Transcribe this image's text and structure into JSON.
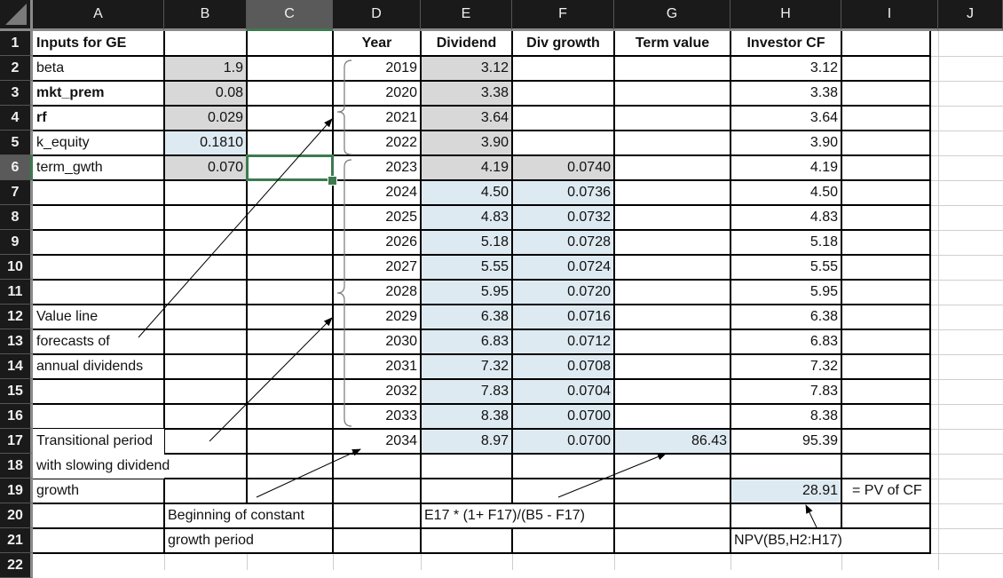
{
  "columns": [
    "A",
    "B",
    "C",
    "D",
    "E",
    "F",
    "G",
    "H",
    "I",
    "J"
  ],
  "selected_column": "C",
  "selected_row": "6",
  "selected_cell": "C6",
  "row_numbers": [
    "1",
    "2",
    "3",
    "4",
    "5",
    "6",
    "7",
    "8",
    "9",
    "10",
    "11",
    "12",
    "13",
    "14",
    "15",
    "16",
    "17",
    "18",
    "19",
    "20",
    "21",
    "22"
  ],
  "inputs": {
    "title": "Inputs for GE",
    "rows": [
      {
        "label": "beta",
        "value": "1.9"
      },
      {
        "label": "mkt_prem",
        "value": "0.08"
      },
      {
        "label": "rf",
        "value": "0.029"
      },
      {
        "label": "k_equity",
        "value": "0.1810"
      },
      {
        "label": "term_gwth",
        "value": "0.070"
      }
    ]
  },
  "table": {
    "headers": {
      "year": "Year",
      "dividend": "Dividend",
      "div_growth": "Div growth",
      "term_value": "Term value",
      "investor_cf": "Investor CF"
    },
    "rows": [
      {
        "year": "2019",
        "dividend": "3.12",
        "div_growth": "",
        "term_value": "",
        "investor_cf": "3.12"
      },
      {
        "year": "2020",
        "dividend": "3.38",
        "div_growth": "",
        "term_value": "",
        "investor_cf": "3.38"
      },
      {
        "year": "2021",
        "dividend": "3.64",
        "div_growth": "",
        "term_value": "",
        "investor_cf": "3.64"
      },
      {
        "year": "2022",
        "dividend": "3.90",
        "div_growth": "",
        "term_value": "",
        "investor_cf": "3.90"
      },
      {
        "year": "2023",
        "dividend": "4.19",
        "div_growth": "0.0740",
        "term_value": "",
        "investor_cf": "4.19"
      },
      {
        "year": "2024",
        "dividend": "4.50",
        "div_growth": "0.0736",
        "term_value": "",
        "investor_cf": "4.50"
      },
      {
        "year": "2025",
        "dividend": "4.83",
        "div_growth": "0.0732",
        "term_value": "",
        "investor_cf": "4.83"
      },
      {
        "year": "2026",
        "dividend": "5.18",
        "div_growth": "0.0728",
        "term_value": "",
        "investor_cf": "5.18"
      },
      {
        "year": "2027",
        "dividend": "5.55",
        "div_growth": "0.0724",
        "term_value": "",
        "investor_cf": "5.55"
      },
      {
        "year": "2028",
        "dividend": "5.95",
        "div_growth": "0.0720",
        "term_value": "",
        "investor_cf": "5.95"
      },
      {
        "year": "2029",
        "dividend": "6.38",
        "div_growth": "0.0716",
        "term_value": "",
        "investor_cf": "6.38"
      },
      {
        "year": "2030",
        "dividend": "6.83",
        "div_growth": "0.0712",
        "term_value": "",
        "investor_cf": "6.83"
      },
      {
        "year": "2031",
        "dividend": "7.32",
        "div_growth": "0.0708",
        "term_value": "",
        "investor_cf": "7.32"
      },
      {
        "year": "2032",
        "dividend": "7.83",
        "div_growth": "0.0704",
        "term_value": "",
        "investor_cf": "7.83"
      },
      {
        "year": "2033",
        "dividend": "8.38",
        "div_growth": "0.0700",
        "term_value": "",
        "investor_cf": "8.38"
      },
      {
        "year": "2034",
        "dividend": "8.97",
        "div_growth": "0.0700",
        "term_value": "86.43",
        "investor_cf": "95.39"
      }
    ]
  },
  "pv": {
    "value": "28.91",
    "label": "= PV of CF",
    "formula": "NPV(B5,H2:H17)"
  },
  "annotations": {
    "value_line": [
      "Value line",
      "forecasts of",
      "annual dividends"
    ],
    "transitional": [
      "Transitional period",
      "with slowing dividend",
      "growth"
    ],
    "constant_growth": [
      "Beginning of constant",
      "growth period"
    ],
    "terminal_formula": "E17 * (1+ F17)/(B5 - F17)"
  },
  "colors": {
    "header_bg": "#1a1a1a",
    "selected_header_bg": "#5a5a5a",
    "selection": "#3d7a50",
    "input_fill": "#d8d8d8",
    "calc_fill": "#deeaf1"
  }
}
